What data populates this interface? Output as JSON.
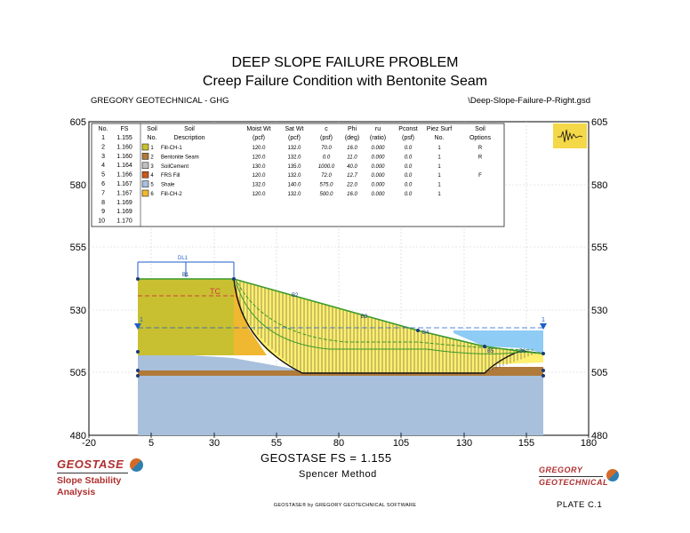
{
  "header": {
    "title": "DEEP SLOPE FAILURE PROBLEM",
    "subtitle": "Creep Failure Condition with Bentonite Seam",
    "company": "GREGORY GEOTECHNICAL - GHG",
    "filename": "\\Deep-Slope-Failure-P-Right.gsd"
  },
  "axes": {
    "x_ticks": [
      "-20",
      "5",
      "30",
      "55",
      "80",
      "105",
      "130",
      "155",
      "180"
    ],
    "y_ticks_left": [
      "605",
      "580",
      "555",
      "530",
      "505",
      "480"
    ],
    "y_ticks_right": [
      "605",
      "580",
      "555",
      "530",
      "505",
      "480"
    ]
  },
  "fs_table": {
    "headers": [
      "No.",
      "FS"
    ],
    "rows": [
      [
        "1",
        "1.155"
      ],
      [
        "2",
        "1.160"
      ],
      [
        "3",
        "1.160"
      ],
      [
        "4",
        "1.164"
      ],
      [
        "5",
        "1.166"
      ],
      [
        "6",
        "1.167"
      ],
      [
        "7",
        "1.167"
      ],
      [
        "8",
        "1.169"
      ],
      [
        "9",
        "1.169"
      ],
      [
        "10",
        "1.170"
      ]
    ]
  },
  "soil_table": {
    "headers_top": [
      "Soil",
      "Soil",
      "Moist Wt",
      "Sat Wt",
      "c",
      "Phi",
      "ru",
      "Pconst",
      "Piez Surf",
      "Soil"
    ],
    "headers_bottom": [
      "No.",
      "Description",
      "(pcf)",
      "(pcf)",
      "(psf)",
      "(deg)",
      "(ratio)",
      "(psf)",
      "No.",
      "Options"
    ],
    "rows": [
      {
        "no": "1",
        "desc": "Fill-CH-1",
        "moist": "120.0",
        "sat": "132.0",
        "c": "70.0",
        "phi": "16.0",
        "ru": "0.000",
        "pconst": "0.0",
        "piez": "1",
        "opt": "R",
        "color": "#c8c030"
      },
      {
        "no": "2",
        "desc": "Bentonite Seam",
        "moist": "120.0",
        "sat": "132.0",
        "c": "0.0",
        "phi": "11.0",
        "ru": "0.000",
        "pconst": "0.0",
        "piez": "1",
        "opt": "R",
        "color": "#b07a3a"
      },
      {
        "no": "3",
        "desc": "SoilCement",
        "moist": "130.0",
        "sat": "135.0",
        "c": "1000.0",
        "phi": "40.0",
        "ru": "0.000",
        "pconst": "0.0",
        "piez": "1",
        "opt": "",
        "color": "#c0c0c0"
      },
      {
        "no": "4",
        "desc": "FRS Fill",
        "moist": "120.0",
        "sat": "132.0",
        "c": "72.0",
        "phi": "12.7",
        "ru": "0.000",
        "pconst": "0.0",
        "piez": "1",
        "opt": "F",
        "color": "#c85a1e"
      },
      {
        "no": "5",
        "desc": "Shale",
        "moist": "132.0",
        "sat": "140.0",
        "c": "575.0",
        "phi": "22.0",
        "ru": "0.000",
        "pconst": "0.0",
        "piez": "1",
        "opt": "",
        "color": "#a8c0dc"
      },
      {
        "no": "6",
        "desc": "Fill-CH-2",
        "moist": "120.0",
        "sat": "132.0",
        "c": "500.0",
        "phi": "16.0",
        "ru": "0.000",
        "pconst": "0.0",
        "piez": "1",
        "opt": "",
        "color": "#f0b830"
      }
    ]
  },
  "annotations": {
    "dl": "DL1",
    "b1": "B1",
    "b2": "B2",
    "b3": "B3",
    "b4": "B4",
    "b5": "B5",
    "b6": "B6",
    "tc": "TC",
    "piezo_left": "1",
    "piezo_right": "1"
  },
  "icons": {
    "seismograph": "seismograph-icon",
    "water_table": "water-table-triangle-icon"
  },
  "colors": {
    "fill_ch1": "#c8c030",
    "fill_ch2": "#f0b830",
    "bentonite": "#b07a3a",
    "shale": "#a8c0dc",
    "soil_cement": "#c0c0c0",
    "sliding_mass": "#fff070",
    "surface_line": "#3a9a2a",
    "water": "#8ecbf5",
    "piezo": "#1e5ec8",
    "tension_crack": "#d04040"
  },
  "footer": {
    "fs_result": "GEOSTASE FS = 1.155",
    "method": "Spencer Method",
    "software": "GEOSTASE® by GREGORY GEOTECHNICAL SOFTWARE",
    "plate": "PLATE C.1"
  },
  "logo_geostase": {
    "word": "GEOSTASE",
    "line1": "Slope Stability",
    "line2": "Analysis"
  },
  "logo_gregory": {
    "line1": "GREGORY",
    "line2": "GEOTECHNICAL"
  }
}
